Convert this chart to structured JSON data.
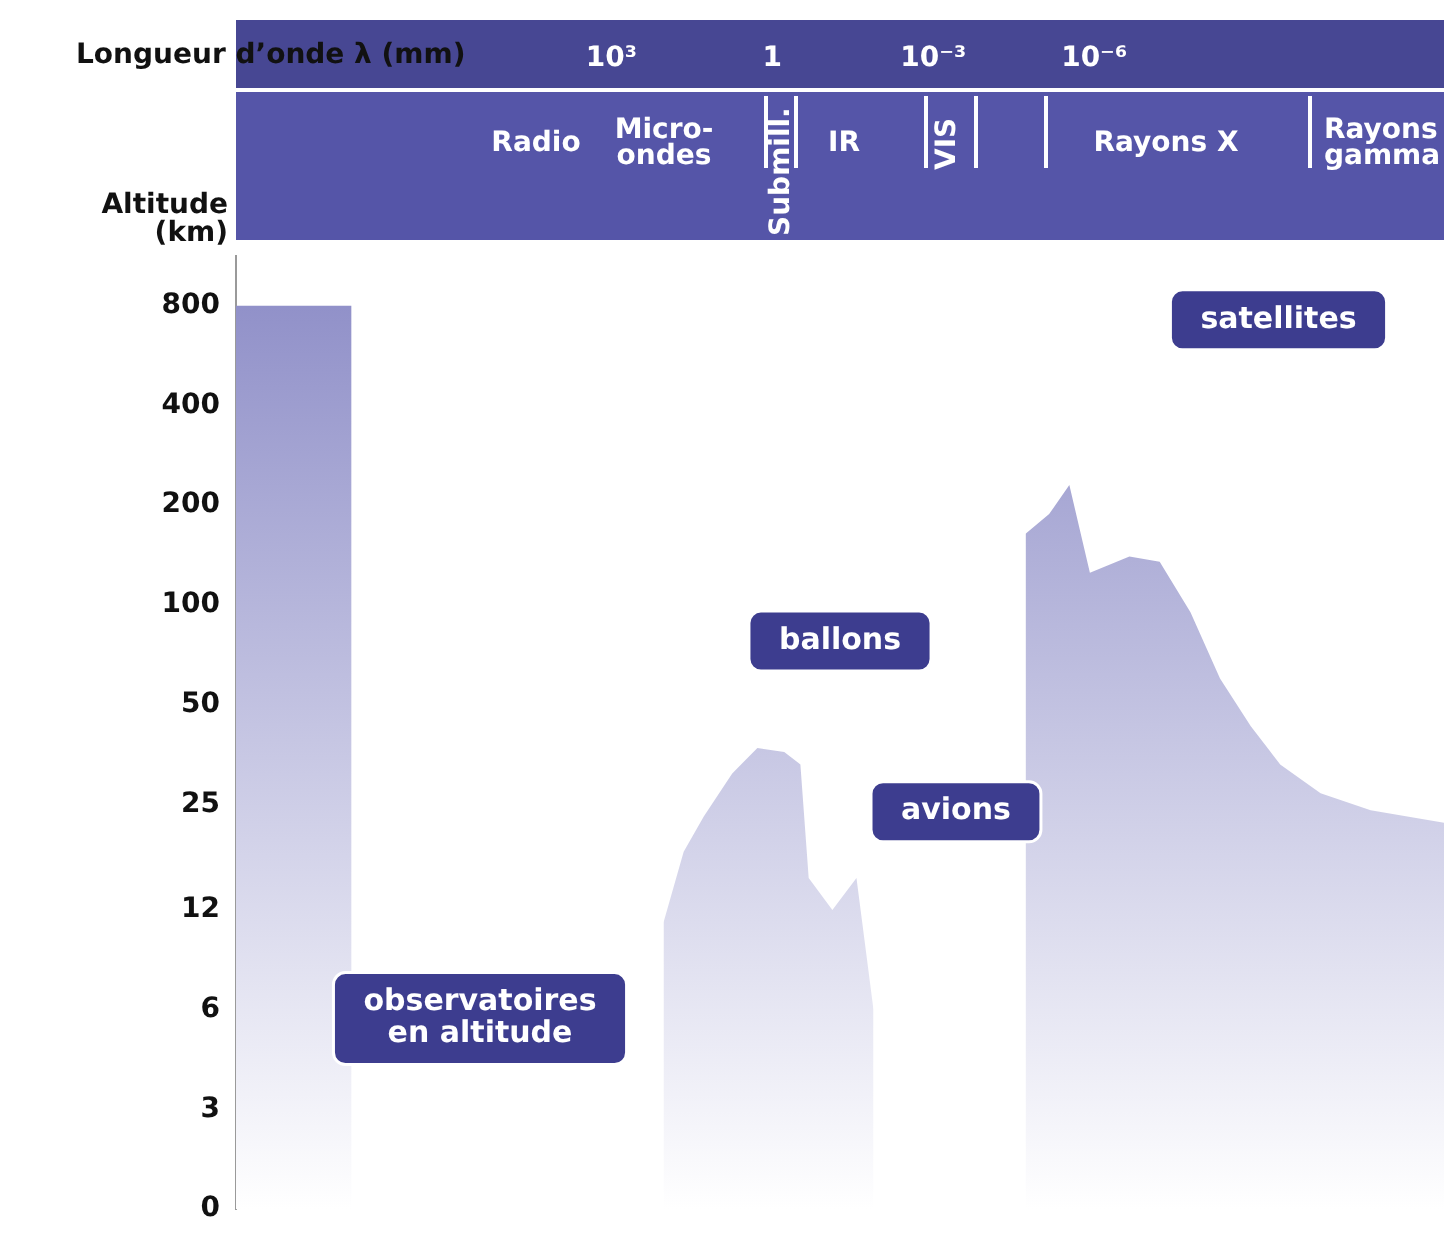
{
  "chart_data": {
    "type": "area",
    "xlabel": "Longueur d’onde λ (mm)",
    "ylabel": "Altitude\n(km)",
    "log": "xy",
    "xlim": [
      10000000000.0,
      3e-13
    ],
    "xticks": [
      {
        "value": 1000,
        "label": "10³"
      },
      1,
      {
        "value": 0.001,
        "label": "10⁻³"
      },
      {
        "value": 1e-06,
        "label": "10⁻⁶"
      }
    ],
    "ylim": [
      0,
      1130
    ],
    "yticks": [
      0,
      3,
      6,
      12,
      25,
      50,
      100,
      200,
      400,
      800
    ],
    "series": [
      {
        "color": "#8b8bc6",
        "x": [
          10000000000.0,
          70000000.0,
          50000000.0,
          180,
          107,
          45,
          19,
          5.6,
          1.9,
          0.6,
          0.3,
          0.21,
          0.076,
          0.027,
          0.013,
          0.0068,
          3.8e-05,
          1.9e-05,
          6.9e-06,
          2.9e-06,
          1.2e-06,
          2.2e-07,
          6e-08,
          1.6e-08,
          4.5e-09,
          1.2e-09,
          3.4e-10,
          6e-11,
          7e-12,
          3e-13
        ],
        "values": [
          800,
          800,
          null,
          null,
          11,
          18,
          23,
          31,
          37,
          36,
          33,
          15,
          12,
          15,
          6,
          null,
          null,
          164,
          188,
          230,
          125,
          140,
          135,
          95,
          60,
          43,
          33,
          27,
          24,
          22
        ]
      }
    ],
    "annotations": [
      "satellites",
      "ballons",
      "avions",
      "observatoires\nen altitude",
      "Radio",
      "Micro-\nondes",
      "Submill.",
      "IR",
      "VIS",
      "Rayons X",
      "Rayons\ngamma"
    ],
    "grid": false,
    "legend": false
  }
}
